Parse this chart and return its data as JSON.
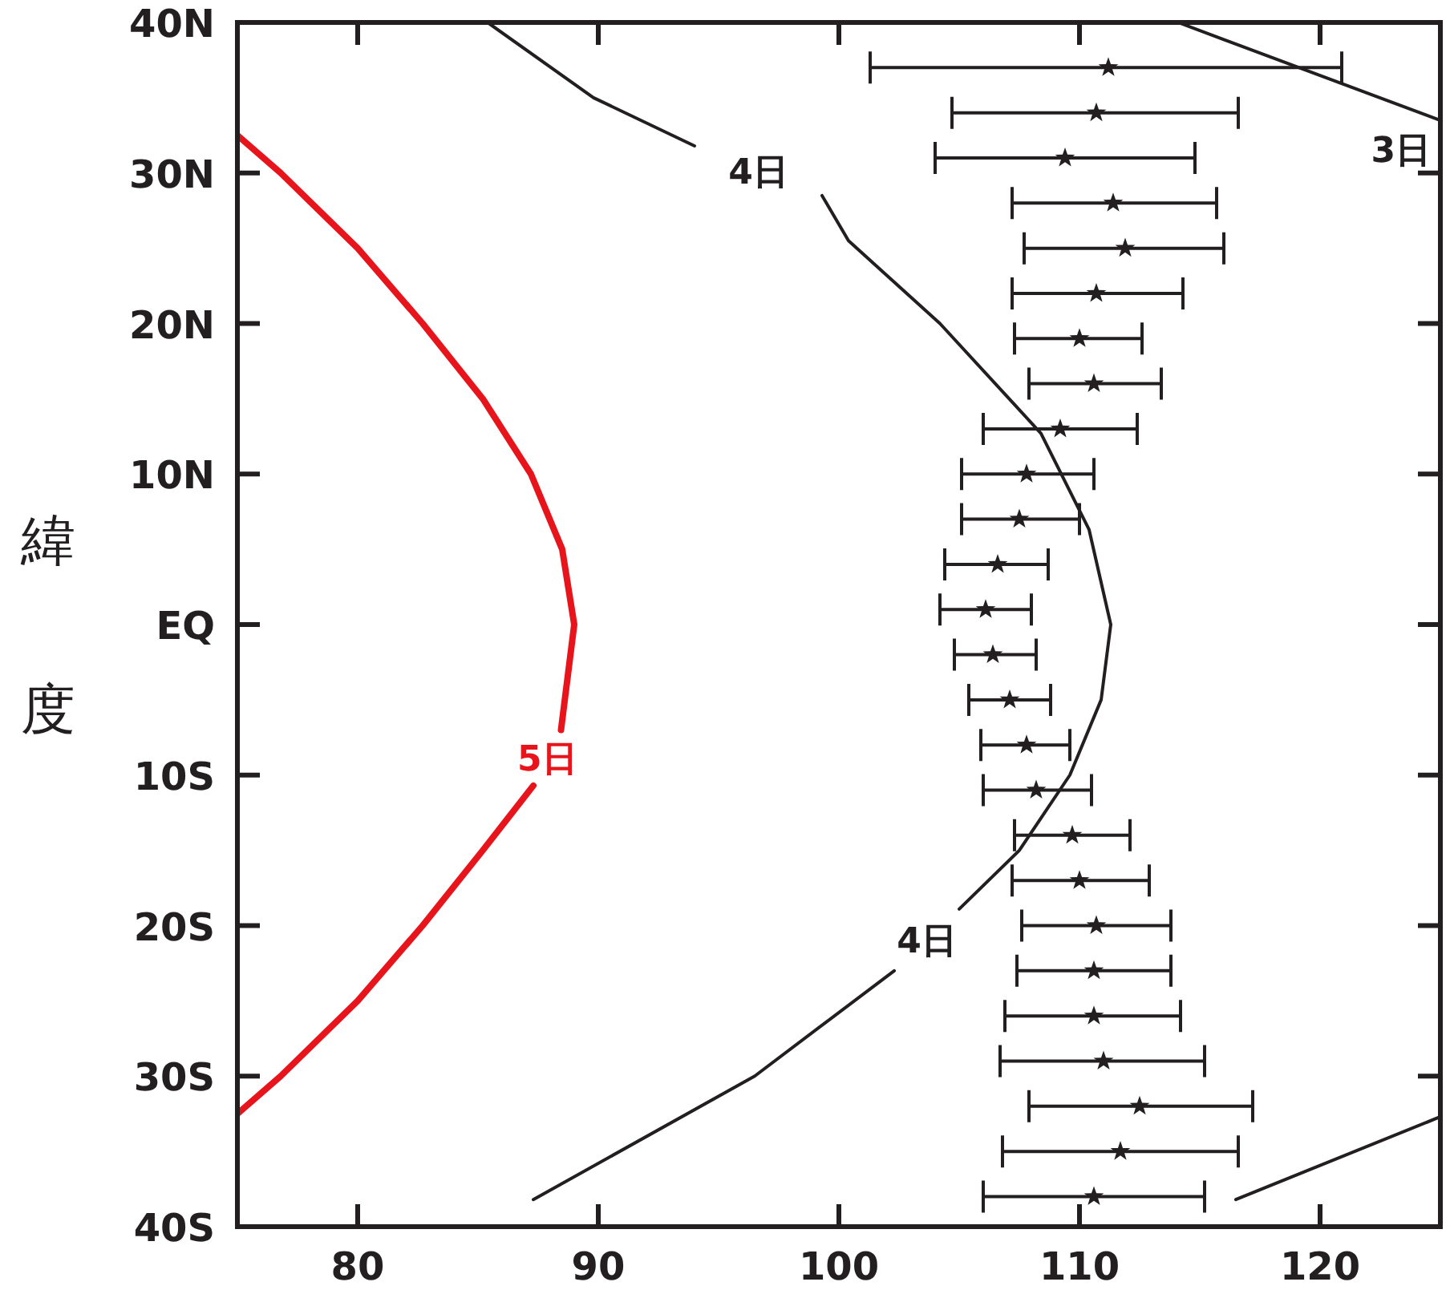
{
  "chart_data": {
    "type": "line",
    "ylabel": "緯度",
    "xlim": [
      75,
      125
    ],
    "ylim": [
      -40,
      40
    ],
    "xticks": [
      80,
      90,
      100,
      110,
      120
    ],
    "yticks": [
      {
        "value": 40,
        "label": "40N"
      },
      {
        "value": 30,
        "label": "30N"
      },
      {
        "value": 20,
        "label": "20N"
      },
      {
        "value": 10,
        "label": "10N"
      },
      {
        "value": 0,
        "label": "EQ"
      },
      {
        "value": -10,
        "label": "10S"
      },
      {
        "value": -20,
        "label": "20S"
      },
      {
        "value": -30,
        "label": "30S"
      },
      {
        "value": -40,
        "label": "40S"
      }
    ],
    "series": [
      {
        "name": "5日",
        "color": "#e8141c",
        "x": [
          75,
          76.8,
          80,
          82.7,
          85.2,
          87.2,
          88.5,
          89.0,
          88.45,
          null,
          87.3,
          85.2,
          82.7,
          80,
          76.8,
          75
        ],
        "values": [
          32.5,
          30,
          25,
          20,
          15,
          10,
          5,
          0,
          -7.0,
          null,
          -10.7,
          -15,
          -20,
          -25,
          -30,
          -32.5
        ]
      },
      {
        "name": "4日",
        "color": "#231f20",
        "x": [
          85.4,
          89.8,
          94.0,
          null,
          99.3,
          100.4,
          104.2,
          108.4,
          110.4,
          111.3,
          110.9,
          109.6,
          107.5,
          105.0,
          null,
          102.3,
          96.5,
          87.3
        ],
        "values": [
          40,
          35,
          31.8,
          null,
          28.5,
          25.5,
          20,
          12.7,
          6.3,
          0,
          -5,
          -10,
          -15,
          -18.9,
          null,
          -23,
          -30,
          -38.2
        ]
      },
      {
        "name": "3日",
        "color": "#231f20",
        "x": [
          114.1,
          125
        ],
        "values": [
          40,
          33.5
        ]
      },
      {
        "color": "#231f20",
        "x": [
          116.5,
          125
        ],
        "values": [
          -38.2,
          -32.7
        ]
      },
      {
        "type": "scatter",
        "color": "#231f20",
        "marker": "star",
        "x": [
          111.2,
          110.7,
          109.4,
          111.4,
          111.9,
          110.7,
          110.0,
          110.6,
          109.2,
          107.8,
          107.5,
          106.6,
          106.1,
          106.4,
          107.1,
          107.8,
          108.2,
          109.7,
          110.0,
          110.7,
          110.6,
          110.6,
          111.0,
          112.5,
          111.7,
          110.6
        ],
        "values": [
          37,
          34,
          31,
          28,
          25,
          22,
          19,
          16,
          13,
          10,
          7,
          4,
          1,
          -2,
          -5,
          -8,
          -11,
          -14,
          -17,
          -20,
          -23,
          -26,
          -29,
          -32,
          -35,
          -38
        ],
        "xerrors": [
          [
            101.3,
            120.9
          ],
          [
            104.7,
            116.6
          ],
          [
            104.0,
            114.8
          ],
          [
            107.2,
            115.7
          ],
          [
            107.7,
            116.0
          ],
          [
            107.2,
            114.3
          ],
          [
            107.3,
            112.6
          ],
          [
            107.9,
            113.4
          ],
          [
            106.0,
            112.4
          ],
          [
            105.1,
            110.6
          ],
          [
            105.1,
            110.0
          ],
          [
            104.4,
            108.7
          ],
          [
            104.2,
            108.0
          ],
          [
            104.8,
            108.2
          ],
          [
            105.4,
            108.8
          ],
          [
            105.9,
            109.6
          ],
          [
            106.0,
            110.5
          ],
          [
            107.3,
            112.1
          ],
          [
            107.2,
            112.9
          ],
          [
            107.6,
            113.8
          ],
          [
            107.4,
            113.8
          ],
          [
            106.9,
            114.2
          ],
          [
            106.7,
            115.2
          ],
          [
            107.9,
            117.2
          ],
          [
            106.8,
            116.6
          ],
          [
            106.0,
            115.2
          ]
        ]
      }
    ]
  }
}
